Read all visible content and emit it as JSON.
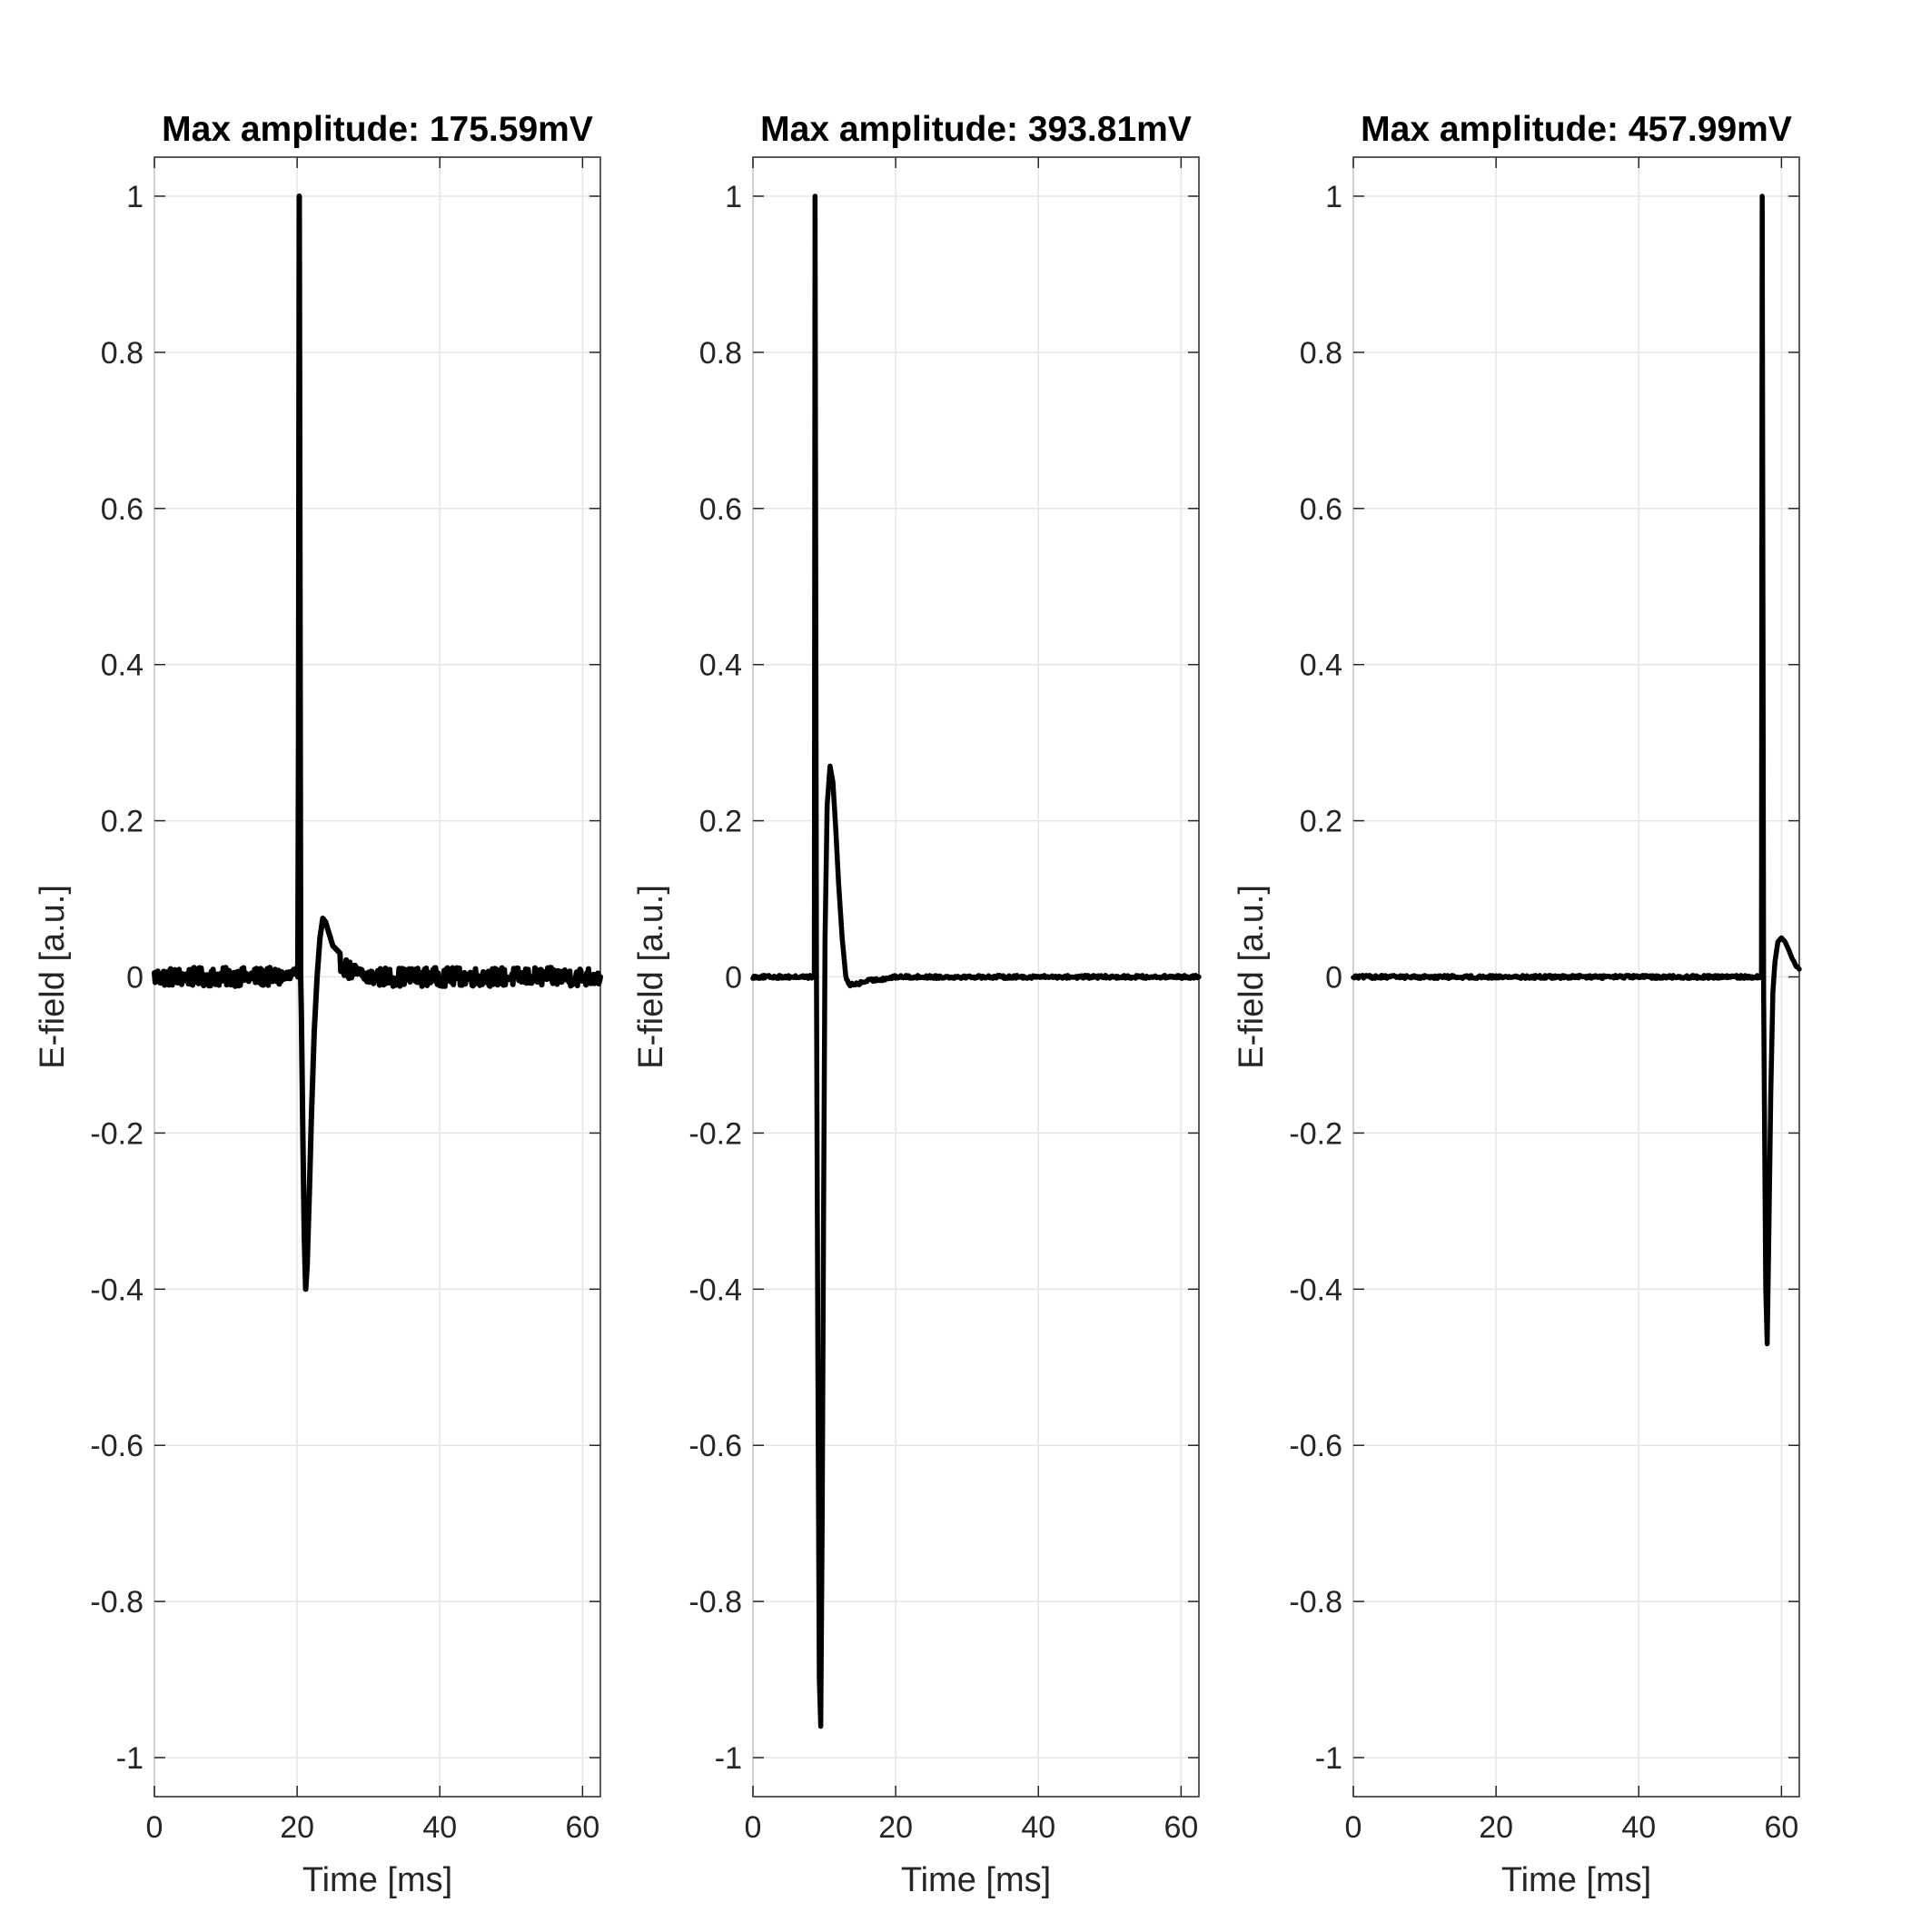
{
  "chart_data": [
    {
      "type": "line",
      "title": "Max amplitude: 175.59mV",
      "xlabel": "Time [ms]",
      "ylabel": "E-field [a.u.]",
      "xlim": [
        0,
        62.5
      ],
      "ylim": [
        -1.05,
        1.05
      ],
      "xticks": [
        0,
        20,
        40,
        60
      ],
      "yticks": [
        -1,
        -0.8,
        -0.6,
        -0.4,
        -0.2,
        0,
        0.2,
        0.4,
        0.6,
        0.8,
        1
      ],
      "grid": true,
      "line_color": "#000000",
      "noise_level": 0.012,
      "series": [
        {
          "x": [
            0,
            5,
            10,
            15,
            20.1,
            20.2,
            20.3,
            20.4,
            20.5,
            20.6,
            20.8,
            21,
            21.2,
            21.4,
            21.7,
            22,
            22.4,
            22.8,
            23.2,
            23.6,
            24,
            24.5,
            25,
            26,
            27,
            28,
            30,
            35,
            40,
            45,
            50,
            55,
            60,
            62.5
          ],
          "y": [
            0,
            0,
            0,
            0,
            0,
            0.3,
            1.0,
            0.5,
            0,
            -0.05,
            -0.2,
            -0.33,
            -0.4,
            -0.37,
            -0.28,
            -0.18,
            -0.07,
            0.0,
            0.05,
            0.075,
            0.07,
            0.055,
            0.04,
            0.02,
            0.01,
            0.005,
            0,
            0,
            0,
            0,
            0,
            0,
            0,
            0
          ]
        }
      ]
    },
    {
      "type": "line",
      "title": "Max amplitude: 393.81mV",
      "xlabel": "Time [ms]",
      "ylabel": "E-field [a.u.]",
      "xlim": [
        0,
        62.5
      ],
      "ylim": [
        -1.05,
        1.05
      ],
      "xticks": [
        0,
        20,
        40,
        60
      ],
      "yticks": [
        -1,
        -0.8,
        -0.6,
        -0.4,
        -0.2,
        0,
        0.2,
        0.4,
        0.6,
        0.8,
        1
      ],
      "grid": true,
      "line_color": "#000000",
      "noise_level": 0.002,
      "series": [
        {
          "x": [
            0,
            5,
            8.6,
            8.7,
            8.8,
            8.9,
            9.1,
            9.3,
            9.5,
            9.7,
            9.9,
            10.1,
            10.4,
            10.8,
            11.2,
            11.6,
            12,
            12.5,
            13,
            13.5,
            14,
            15,
            16,
            18,
            20,
            25,
            30,
            40,
            50,
            60,
            62.5
          ],
          "y": [
            0,
            0,
            0,
            1.0,
            0.5,
            0,
            -0.5,
            -0.9,
            -0.96,
            -0.7,
            -0.3,
            0.05,
            0.22,
            0.27,
            0.25,
            0.19,
            0.12,
            0.05,
            0.0,
            -0.01,
            -0.01,
            -0.008,
            -0.005,
            -0.003,
            0,
            0,
            0,
            0,
            0,
            0,
            0
          ]
        }
      ]
    },
    {
      "type": "line",
      "title": "Max amplitude: 457.99mV",
      "xlabel": "Time [ms]",
      "ylabel": "E-field [a.u.]",
      "xlim": [
        0,
        62.5
      ],
      "ylim": [
        -1.05,
        1.05
      ],
      "xticks": [
        0,
        20,
        40,
        60
      ],
      "yticks": [
        -1,
        -0.8,
        -0.6,
        -0.4,
        -0.2,
        0,
        0.2,
        0.4,
        0.6,
        0.8,
        1
      ],
      "grid": true,
      "line_color": "#000000",
      "noise_level": 0.002,
      "series": [
        {
          "x": [
            0,
            10,
            20,
            30,
            40,
            50,
            56,
            57.2,
            57.3,
            57.4,
            57.5,
            57.6,
            57.8,
            58.0,
            58.2,
            58.5,
            58.8,
            59.1,
            59.5,
            60,
            60.5,
            61,
            61.5,
            62,
            62.5
          ],
          "y": [
            0,
            0,
            0,
            0,
            0,
            0,
            0,
            0,
            1.0,
            0.5,
            -0.02,
            -0.15,
            -0.4,
            -0.47,
            -0.35,
            -0.15,
            -0.02,
            0.02,
            0.045,
            0.05,
            0.045,
            0.035,
            0.025,
            0.015,
            0.01
          ]
        }
      ]
    }
  ]
}
